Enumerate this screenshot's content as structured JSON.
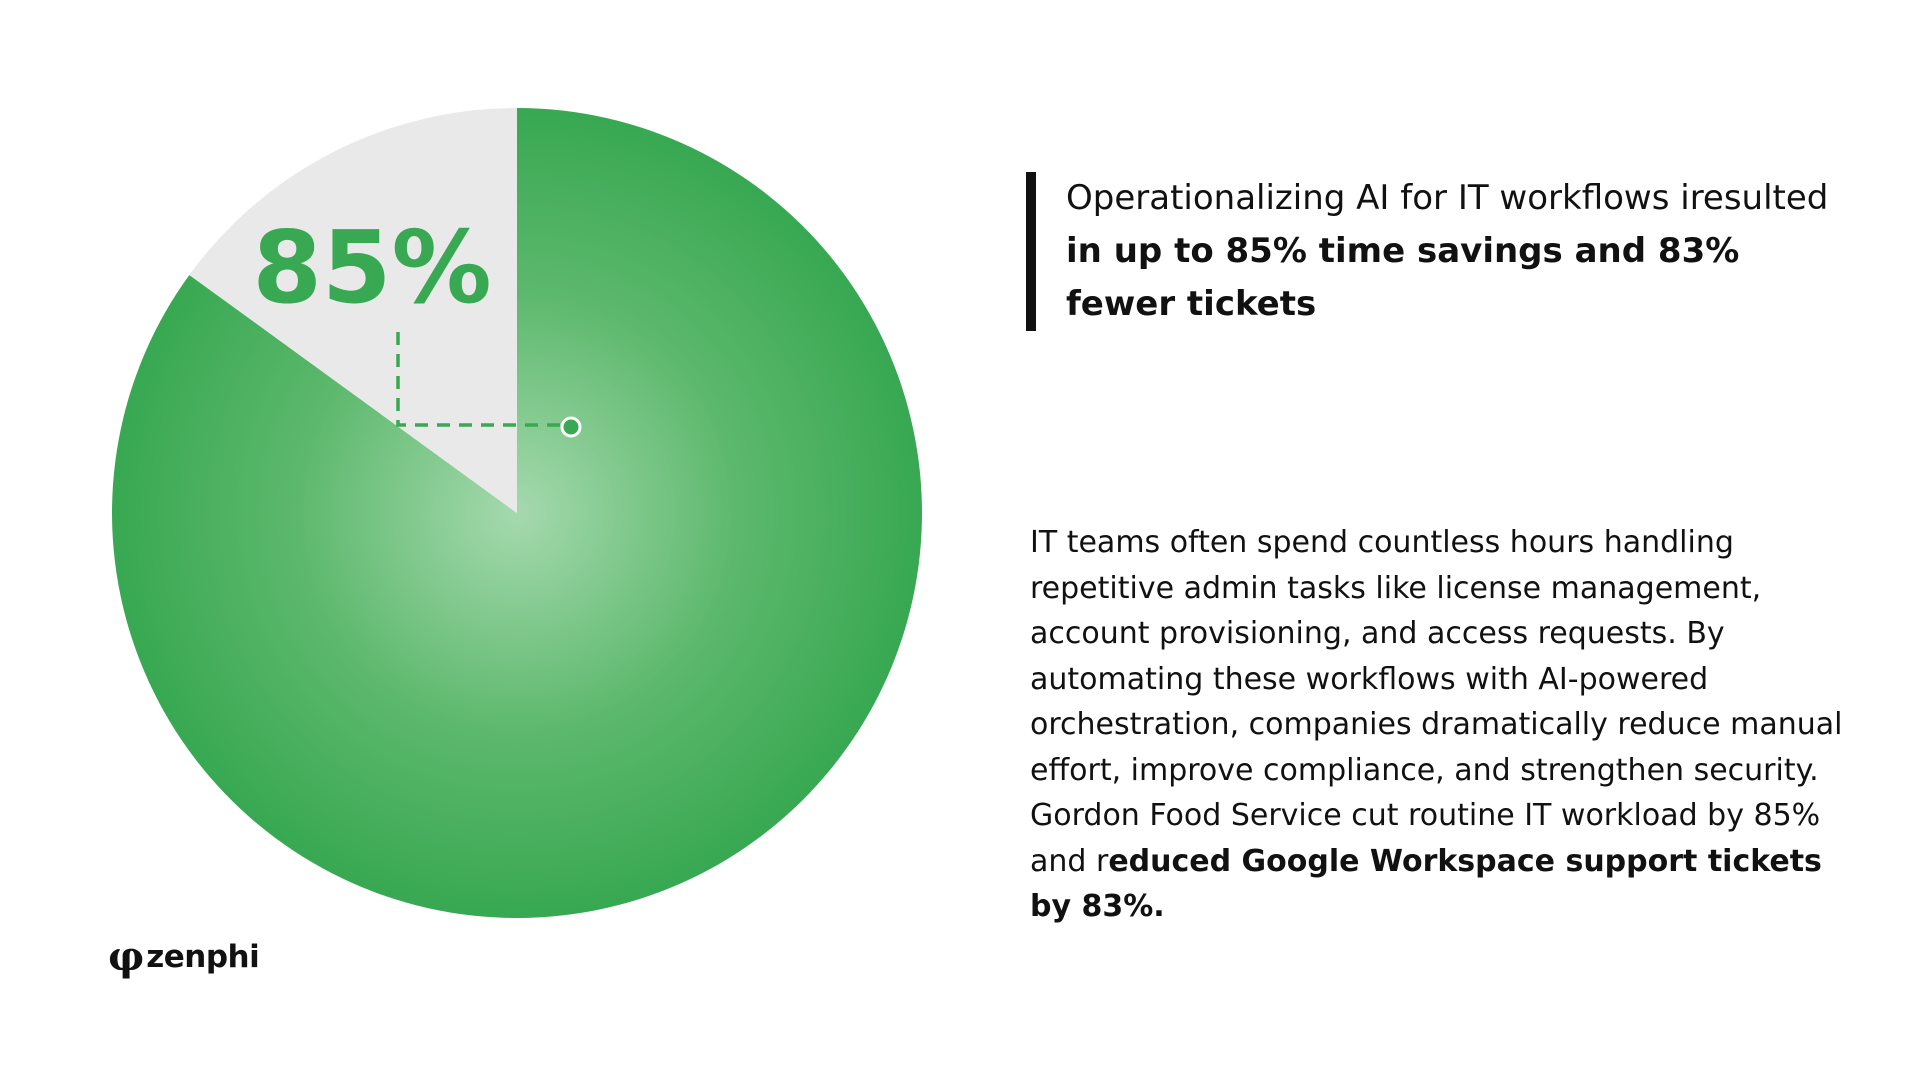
{
  "chart_data": {
    "type": "pie",
    "slices": [
      {
        "value": 85,
        "color": "#38a852"
      },
      {
        "value": 15,
        "color": "#e9e9e9"
      }
    ],
    "data_labels": [
      "85%"
    ],
    "label_color": "#38a852",
    "legend": "none"
  },
  "headline": {
    "part1": "Operationalizing AI for  IT workflows iresulted ",
    "part2_bold": "in up to 85% time savings and 83% fewer tickets"
  },
  "body": {
    "text": "IT teams often spend countless hours handling repetitive admin tasks like license management, account provisioning, and access requests. By automating these workflows with AI-powered orchestration, companies dramatically reduce manual effort, improve compliance, and strengthen security. Gordon Food Service cut routine IT workload by 85% and r",
    "bold": "educed Google Workspace support tickets by 83%."
  },
  "logo": {
    "text": "zenphi",
    "icon": "phi-logo-icon"
  }
}
